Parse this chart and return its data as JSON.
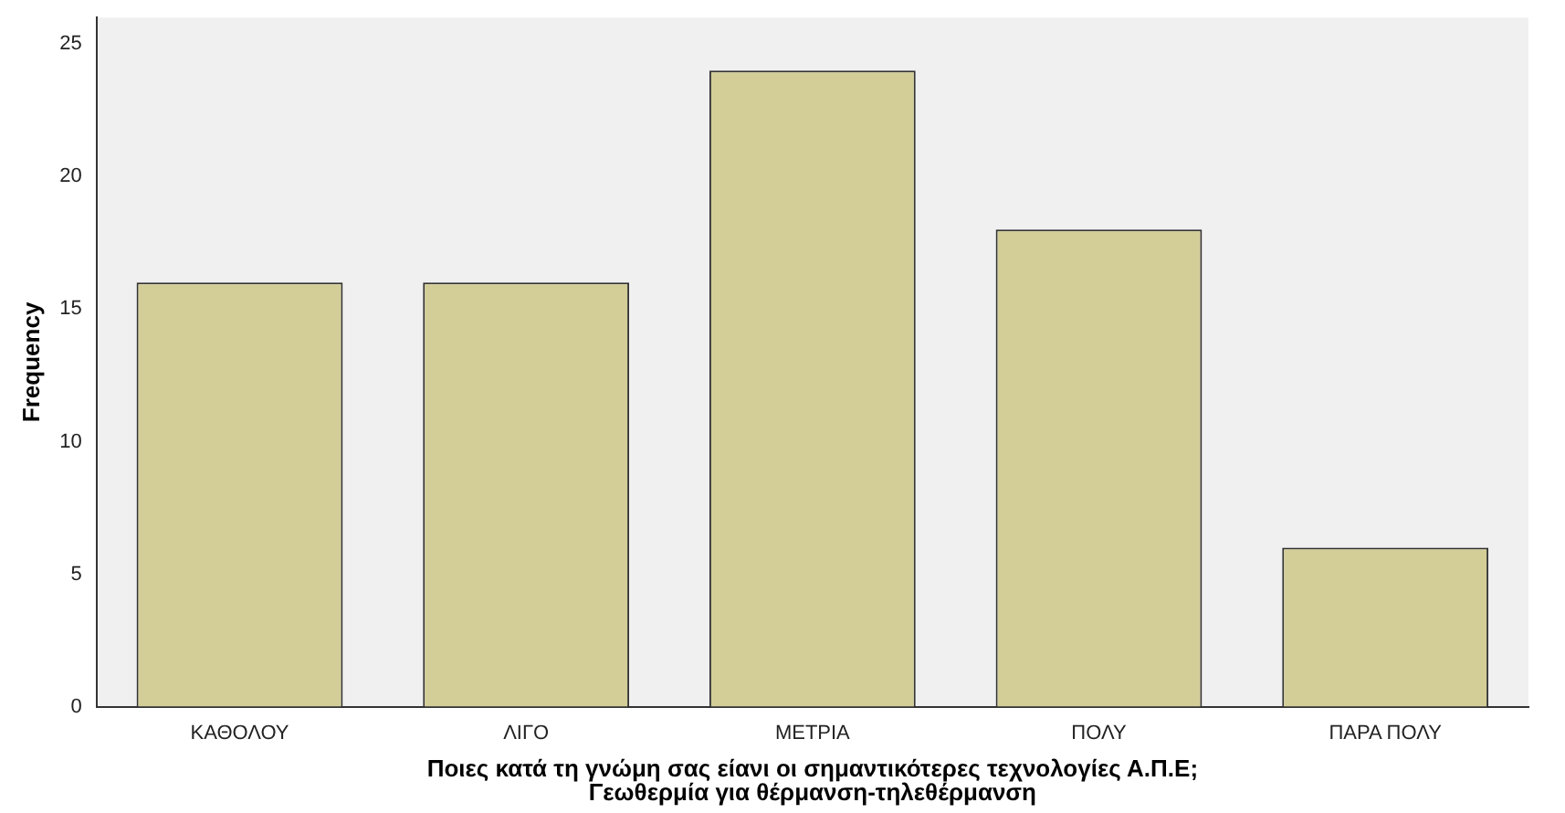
{
  "chart_data": {
    "type": "bar",
    "xlabel": "Ποιες κατά τη γνώμη σας είανι οι σημαντικότερες τεχνολογίες Α.Π.Ε;\nΓεωθερμία για θέρμανση-τηλεθέρμανση",
    "ylabel": "Frequency",
    "categories": [
      "ΚΑΘΟΛΟΥ",
      "ΛΙΓΟ",
      "ΜΕΤΡΙΑ",
      "ΠΟΛΥ",
      "ΠΑΡΑ ΠΟΛΥ"
    ],
    "values": [
      16,
      16,
      24,
      18,
      6
    ],
    "color": "#d3ce98",
    "ylim": [
      0,
      26
    ],
    "yticks": [
      0,
      5,
      10,
      15,
      20,
      25
    ],
    "grid": false,
    "legend": false
  }
}
